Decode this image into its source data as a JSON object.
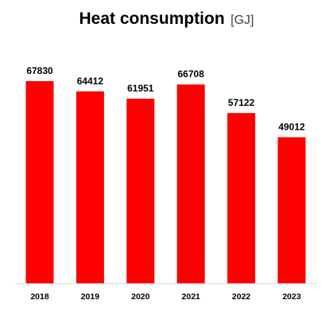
{
  "chart_data": {
    "type": "bar",
    "title": "Heat consumption",
    "unit": "[GJ]",
    "categories": [
      "2018",
      "2019",
      "2020",
      "2021",
      "2022",
      "2023"
    ],
    "values": [
      67830,
      64412,
      61951,
      66708,
      57122,
      49012
    ],
    "bar_color": "#ff0000",
    "ylim": [
      0,
      70000
    ],
    "grid": false,
    "data_labels": true
  }
}
